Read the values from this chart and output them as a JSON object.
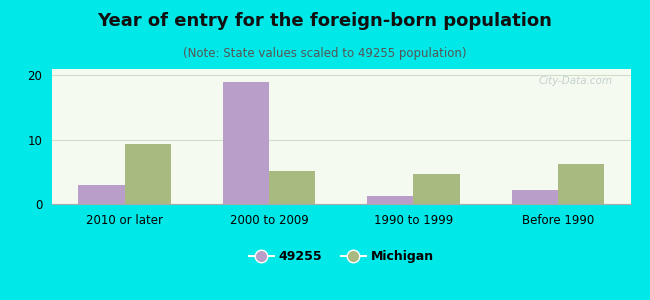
{
  "title": "Year of entry for the foreign-born population",
  "subtitle": "(Note: State values scaled to 49255 population)",
  "categories": [
    "2010 or later",
    "2000 to 2009",
    "1990 to 1999",
    "Before 1990"
  ],
  "series_49255": [
    3.0,
    19.0,
    1.2,
    2.2
  ],
  "series_michigan": [
    9.3,
    5.2,
    4.6,
    6.2
  ],
  "bar_color_49255": "#b89ec8",
  "bar_color_michigan": "#a8ba80",
  "background_outer": "#00e8e8",
  "background_inner_top": "#e8f5e0",
  "background_inner_bottom": "#f5faf0",
  "ylim": [
    0,
    21
  ],
  "yticks": [
    0,
    10,
    20
  ],
  "bar_width": 0.32,
  "legend_label_49255": "49255",
  "legend_label_michigan": "Michigan",
  "title_fontsize": 13,
  "subtitle_fontsize": 8.5,
  "axis_label_fontsize": 8.5,
  "legend_fontsize": 9,
  "grid_color": "#d0ddc8",
  "spine_color": "#aaaaaa"
}
